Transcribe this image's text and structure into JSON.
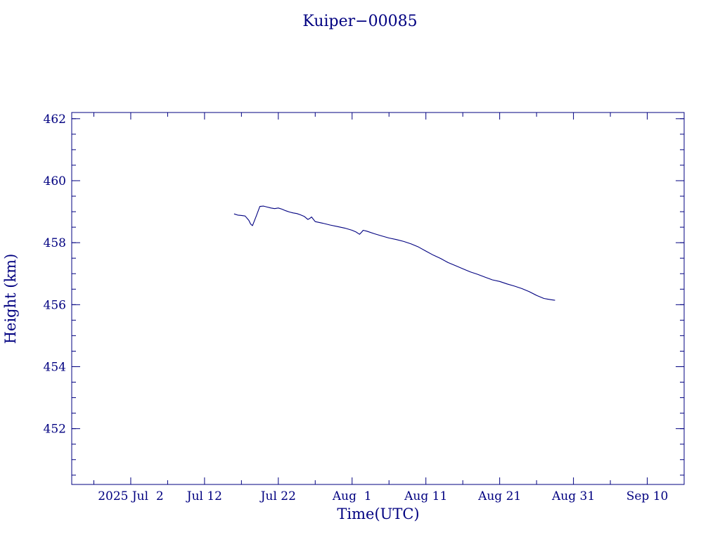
{
  "colors": {
    "ink": "#000080",
    "background": "#ffffff"
  },
  "chart_data": {
    "type": "line",
    "title": "Kuiper−00085",
    "xlabel": "Time(UTC)",
    "ylabel": "Height (km)",
    "xlim": [
      "2025-06-24",
      "2025-09-15"
    ],
    "ylim": [
      450.2,
      462.2
    ],
    "grid": false,
    "legend": "none",
    "x_ticks": [
      {
        "date": "2025-06-27",
        "label": ""
      },
      {
        "date": "2025-07-02",
        "label": "2025 Jul  2"
      },
      {
        "date": "2025-07-07",
        "label": ""
      },
      {
        "date": "2025-07-12",
        "label": "Jul 12"
      },
      {
        "date": "2025-07-17",
        "label": ""
      },
      {
        "date": "2025-07-22",
        "label": "Jul 22"
      },
      {
        "date": "2025-07-27",
        "label": ""
      },
      {
        "date": "2025-08-01",
        "label": "Aug  1"
      },
      {
        "date": "2025-08-06",
        "label": ""
      },
      {
        "date": "2025-08-11",
        "label": "Aug 11"
      },
      {
        "date": "2025-08-16",
        "label": ""
      },
      {
        "date": "2025-08-21",
        "label": "Aug 21"
      },
      {
        "date": "2025-08-26",
        "label": ""
      },
      {
        "date": "2025-08-31",
        "label": "Aug 31"
      },
      {
        "date": "2025-09-05",
        "label": ""
      },
      {
        "date": "2025-09-10",
        "label": "Sep 10"
      }
    ],
    "y_major_ticks": [
      {
        "value": 452,
        "label": "452"
      },
      {
        "value": 454,
        "label": "454"
      },
      {
        "value": 456,
        "label": "456"
      },
      {
        "value": 458,
        "label": "458"
      },
      {
        "value": 460,
        "label": "460"
      },
      {
        "value": 462,
        "label": "462"
      }
    ],
    "y_minor_step": 0.5,
    "series": [
      {
        "x": [
          "2025-07-16 00:00",
          "2025-07-16 12:00",
          "2025-07-17 00:00",
          "2025-07-17 12:00",
          "2025-07-18 00:00",
          "2025-07-18 06:00",
          "2025-07-18 12:00",
          "2025-07-19 00:00",
          "2025-07-19 12:00",
          "2025-07-20 00:00",
          "2025-07-20 12:00",
          "2025-07-21 00:00",
          "2025-07-21 12:00",
          "2025-07-22 00:00",
          "2025-07-22 12:00",
          "2025-07-23 00:00",
          "2025-07-23 12:00",
          "2025-07-24 00:00",
          "2025-07-24 12:00",
          "2025-07-25 00:00",
          "2025-07-25 12:00",
          "2025-07-26 00:00",
          "2025-07-26 06:00",
          "2025-07-26 12:00",
          "2025-07-27 00:00",
          "2025-07-28 00:00",
          "2025-07-29 00:00",
          "2025-07-30 00:00",
          "2025-07-31 00:00",
          "2025-08-01 00:00",
          "2025-08-01 12:00",
          "2025-08-02 00:00",
          "2025-08-02 06:00",
          "2025-08-02 12:00",
          "2025-08-03 00:00",
          "2025-08-04 00:00",
          "2025-08-05 00:00",
          "2025-08-06 00:00",
          "2025-08-07 00:00",
          "2025-08-08 00:00",
          "2025-08-09 00:00",
          "2025-08-10 00:00",
          "2025-08-11 00:00",
          "2025-08-12 00:00",
          "2025-08-13 00:00",
          "2025-08-14 00:00",
          "2025-08-15 00:00",
          "2025-08-16 00:00",
          "2025-08-17 00:00",
          "2025-08-18 00:00",
          "2025-08-19 00:00",
          "2025-08-20 00:00",
          "2025-08-21 00:00",
          "2025-08-22 00:00",
          "2025-08-23 00:00",
          "2025-08-24 00:00",
          "2025-08-25 00:00",
          "2025-08-26 00:00",
          "2025-08-27 00:00",
          "2025-08-27 12:00",
          "2025-08-28 00:00",
          "2025-08-28 12:00"
        ],
        "y": [
          458.93,
          458.89,
          458.88,
          458.86,
          458.72,
          458.6,
          458.55,
          458.85,
          459.17,
          459.18,
          459.15,
          459.12,
          459.1,
          459.12,
          459.08,
          459.03,
          458.99,
          458.96,
          458.94,
          458.9,
          458.85,
          458.75,
          458.78,
          458.83,
          458.68,
          458.63,
          458.57,
          458.52,
          458.47,
          458.4,
          458.35,
          458.27,
          458.33,
          458.4,
          458.37,
          458.29,
          458.22,
          458.15,
          458.1,
          458.04,
          457.96,
          457.86,
          457.73,
          457.6,
          457.49,
          457.36,
          457.26,
          457.16,
          457.06,
          456.98,
          456.89,
          456.8,
          456.75,
          456.67,
          456.6,
          456.52,
          456.42,
          456.3,
          456.2,
          456.18,
          456.16,
          456.14
        ]
      }
    ]
  }
}
